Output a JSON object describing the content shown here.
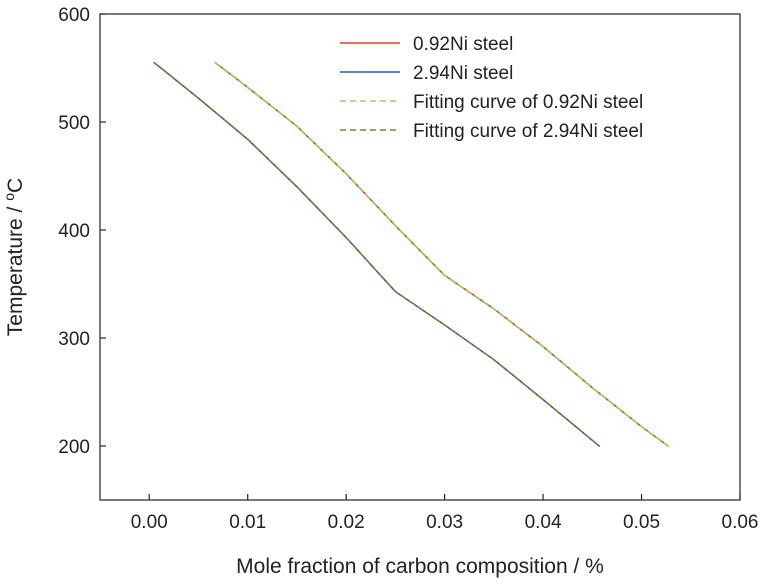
{
  "chart_data": {
    "type": "line",
    "xlabel": "Mole fraction of carbon composition / %",
    "ylabel_main": "Temperature / ",
    "ylabel_sup": "o",
    "ylabel_unit": "C",
    "xlim": [
      -0.005,
      0.06
    ],
    "ylim": [
      150,
      600
    ],
    "x_ticks": [
      0.0,
      0.01,
      0.02,
      0.03,
      0.04,
      0.05,
      0.06
    ],
    "x_tick_labels": [
      "0.00",
      "0.01",
      "0.02",
      "0.03",
      "0.04",
      "0.05",
      "0.06"
    ],
    "y_ticks": [
      200,
      300,
      400,
      500,
      600
    ],
    "y_tick_labels": [
      "200",
      "300",
      "400",
      "500",
      "600"
    ],
    "grid": false,
    "legend_position": "top-right",
    "series": [
      {
        "name": "0.92Ni steel",
        "color": "#d9472b",
        "style": "solid",
        "x": [
          0.0067,
          0.01,
          0.015,
          0.02,
          0.025,
          0.03,
          0.035,
          0.04,
          0.045,
          0.05,
          0.0527
        ],
        "y": [
          555,
          532,
          496,
          452,
          404,
          358,
          327,
          292,
          254,
          218,
          200
        ]
      },
      {
        "name": "2.94Ni steel",
        "color": "#2f5fa0",
        "style": "solid",
        "x": [
          0.0005,
          0.005,
          0.01,
          0.015,
          0.02,
          0.025,
          0.03,
          0.035,
          0.04,
          0.0457
        ],
        "y": [
          555,
          522,
          484,
          440,
          393,
          343,
          312,
          280,
          243,
          200
        ]
      },
      {
        "name": "Fitting curve of 0.92Ni steel",
        "color": "#8fd16a",
        "style": "dashed",
        "x": [
          0.0067,
          0.01,
          0.015,
          0.02,
          0.025,
          0.03,
          0.035,
          0.04,
          0.045,
          0.05,
          0.0527
        ],
        "y": [
          555,
          532,
          496,
          452,
          404,
          358,
          327,
          292,
          254,
          218,
          200
        ]
      },
      {
        "name": "Fitting curve of 2.94Ni steel",
        "color": "#8a7d33",
        "style": "dashed",
        "x": [
          0.0005,
          0.005,
          0.01,
          0.015,
          0.02,
          0.025,
          0.03,
          0.035,
          0.04,
          0.0457
        ],
        "y": [
          555,
          522,
          484,
          440,
          393,
          343,
          312,
          280,
          243,
          200
        ]
      }
    ]
  }
}
